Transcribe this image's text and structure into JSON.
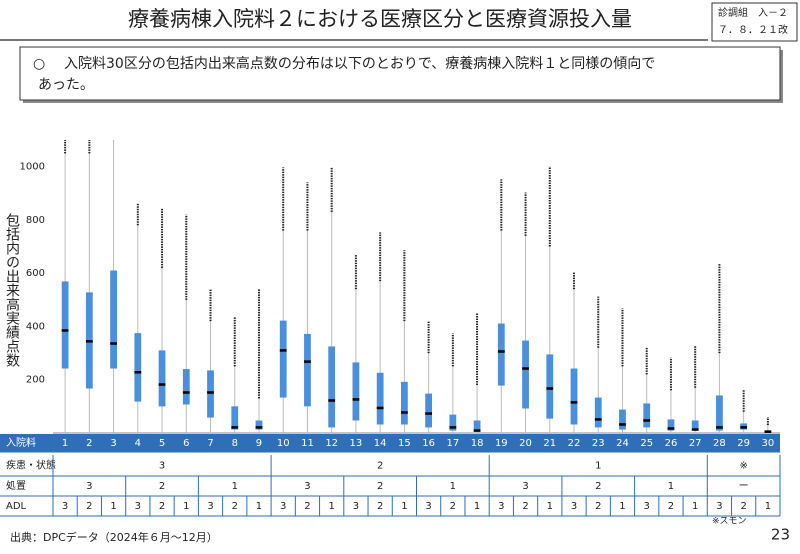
{
  "header": {
    "title": "療養病棟入院料２における医療区分と医療資源投入量",
    "ref_line1": "診調組　入－２",
    "ref_line2": "７．８．２１改"
  },
  "summary": {
    "bullet": "○",
    "line1": "入院料30区分の包括内出来高点数の分布は以下のとおりで、療養病棟入院料１と同様の傾向で",
    "line2": "あった。"
  },
  "chart_data": {
    "type": "box",
    "ylabel": "包括内の出来高実績点数",
    "color": "#4a8fdc",
    "categories": [
      "1",
      "2",
      "3",
      "4",
      "5",
      "6",
      "7",
      "8",
      "9",
      "10",
      "11",
      "12",
      "13",
      "14",
      "15",
      "16",
      "17",
      "18",
      "19",
      "20",
      "21",
      "22",
      "23",
      "24",
      "25",
      "26",
      "27",
      "28",
      "29",
      "30"
    ],
    "boxes": [
      {
        "low": 0,
        "q1": 242,
        "median": 385,
        "q3": 569,
        "high": 1050,
        "max": 1100
      },
      {
        "low": 0,
        "q1": 167,
        "median": 344,
        "q3": 528,
        "high": 1050,
        "max": 1100
      },
      {
        "low": 0,
        "q1": 242,
        "median": 336,
        "q3": 610,
        "high": 1100,
        "max": 1100
      },
      {
        "low": 0,
        "q1": 118,
        "median": 228,
        "q3": 375,
        "high": 780,
        "max": 860
      },
      {
        "low": 0,
        "q1": 100,
        "median": 182,
        "q3": 310,
        "high": 620,
        "max": 845
      },
      {
        "low": 0,
        "q1": 107,
        "median": 152,
        "q3": 240,
        "high": 500,
        "max": 820
      },
      {
        "low": 0,
        "q1": 58,
        "median": 152,
        "q3": 235,
        "high": 420,
        "max": 539
      },
      {
        "low": 0,
        "q1": 13,
        "median": 21,
        "q3": 100,
        "high": 250,
        "max": 438
      },
      {
        "low": 0,
        "q1": 13,
        "median": 21,
        "q3": 47,
        "high": 130,
        "max": 539
      },
      {
        "low": 0,
        "q1": 133,
        "median": 310,
        "q3": 422,
        "high": 760,
        "max": 997
      },
      {
        "low": 0,
        "q1": 100,
        "median": 268,
        "q3": 372,
        "high": 760,
        "max": 941
      },
      {
        "low": 0,
        "q1": 21,
        "median": 122,
        "q3": 325,
        "high": 830,
        "max": 997
      },
      {
        "low": 0,
        "q1": 47,
        "median": 126,
        "q3": 265,
        "high": 540,
        "max": 670
      },
      {
        "low": 0,
        "q1": 32,
        "median": 94,
        "q3": 226,
        "high": 570,
        "max": 753
      },
      {
        "low": 0,
        "q1": 32,
        "median": 77,
        "q3": 192,
        "high": 420,
        "max": 686
      },
      {
        "low": 0,
        "q1": 21,
        "median": 73,
        "q3": 148,
        "high": 300,
        "max": 422
      },
      {
        "low": 0,
        "q1": 9,
        "median": 21,
        "q3": 69,
        "high": 250,
        "max": 374
      },
      {
        "low": 0,
        "q1": 6,
        "median": 9,
        "q3": 47,
        "high": 180,
        "max": 449
      },
      {
        "low": 0,
        "q1": 178,
        "median": 306,
        "q3": 411,
        "high": 760,
        "max": 952
      },
      {
        "low": 0,
        "q1": 92,
        "median": 242,
        "q3": 347,
        "high": 740,
        "max": 903
      },
      {
        "low": 0,
        "q1": 54,
        "median": 167,
        "q3": 295,
        "high": 700,
        "max": 1001
      },
      {
        "low": 0,
        "q1": 32,
        "median": 115,
        "q3": 242,
        "high": 540,
        "max": 603
      },
      {
        "low": 0,
        "q1": 21,
        "median": 51,
        "q3": 133,
        "high": 320,
        "max": 512
      },
      {
        "low": 0,
        "q1": 13,
        "median": 32,
        "q3": 88,
        "high": 250,
        "max": 468
      },
      {
        "low": 0,
        "q1": 21,
        "median": 47,
        "q3": 111,
        "high": 220,
        "max": 321
      },
      {
        "low": 0,
        "q1": 9,
        "median": 17,
        "q3": 51,
        "high": 160,
        "max": 283
      },
      {
        "low": 0,
        "q1": 9,
        "median": 13,
        "q3": 47,
        "high": 170,
        "max": 329
      },
      {
        "low": 0,
        "q1": 9,
        "median": 21,
        "q3": 141,
        "high": 300,
        "max": 637
      },
      {
        "low": 0,
        "q1": 13,
        "median": 21,
        "q3": 36,
        "high": 80,
        "max": 163
      },
      {
        "low": 0,
        "q1": 2,
        "median": 5,
        "q3": 10,
        "high": 30,
        "max": 60
      }
    ],
    "ylim": [
      0,
      1100
    ],
    "yticks": [
      200,
      400,
      600,
      800,
      1000
    ]
  },
  "table": {
    "row_headers": [
      "入院料",
      "疾患・状態",
      "処置",
      "ADL"
    ],
    "disease": [
      "3",
      "2",
      "1",
      "※"
    ],
    "treatment": [
      "3",
      "2",
      "1",
      "3",
      "2",
      "1",
      "3",
      "2",
      "1",
      "ー"
    ],
    "adl": [
      "3",
      "2",
      "1",
      "3",
      "2",
      "1",
      "3",
      "2",
      "1",
      "3",
      "2",
      "1",
      "3",
      "2",
      "1",
      "3",
      "2",
      "1",
      "3",
      "2",
      "1",
      "3",
      "2",
      "1",
      "3",
      "2",
      "1",
      "3",
      "2",
      "1"
    ]
  },
  "footer": {
    "source": "出典：DPCデータ（2024年６月～12月）",
    "note": "※スモン",
    "page": "23"
  }
}
